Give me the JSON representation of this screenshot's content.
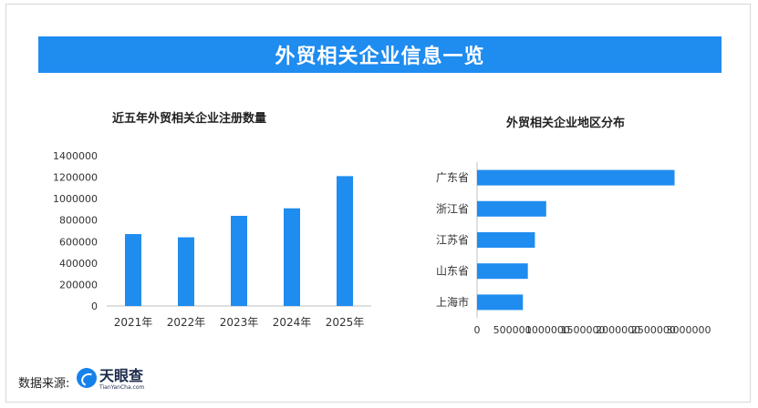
{
  "header": {
    "title": "外贸相关企业信息一览"
  },
  "footer": {
    "source_label": "数据来源:",
    "logo_name": "天眼查",
    "logo_sub": "TianYanCha.com"
  },
  "colors": {
    "accent": "#1f8cf0",
    "bar": "#1f8cf0"
  },
  "chart_data": [
    {
      "type": "bar",
      "orientation": "vertical",
      "title": "近五年外贸相关企业注册数量",
      "categories": [
        "2021年",
        "2022年",
        "2023年",
        "2024年",
        "2025年"
      ],
      "values": [
        670000,
        640000,
        840000,
        910000,
        1210000
      ],
      "ylim": [
        0,
        1400000
      ],
      "yticks": [
        "0",
        "200000",
        "400000",
        "600000",
        "800000",
        "1000000",
        "1200000",
        "1400000"
      ],
      "xlabel": "",
      "ylabel": "",
      "grid": false
    },
    {
      "type": "bar",
      "orientation": "horizontal",
      "title": "外贸相关企业地区分布",
      "categories": [
        "广东省",
        "浙江省",
        "江苏省",
        "山东省",
        "上海市"
      ],
      "values": [
        2800000,
        980000,
        820000,
        720000,
        650000
      ],
      "xlim": [
        0,
        3000000
      ],
      "xticks": [
        "0",
        "500000",
        "1000000",
        "1500000",
        "2000000",
        "2500000",
        "3000000"
      ],
      "xlabel": "",
      "ylabel": "",
      "grid": false
    }
  ]
}
